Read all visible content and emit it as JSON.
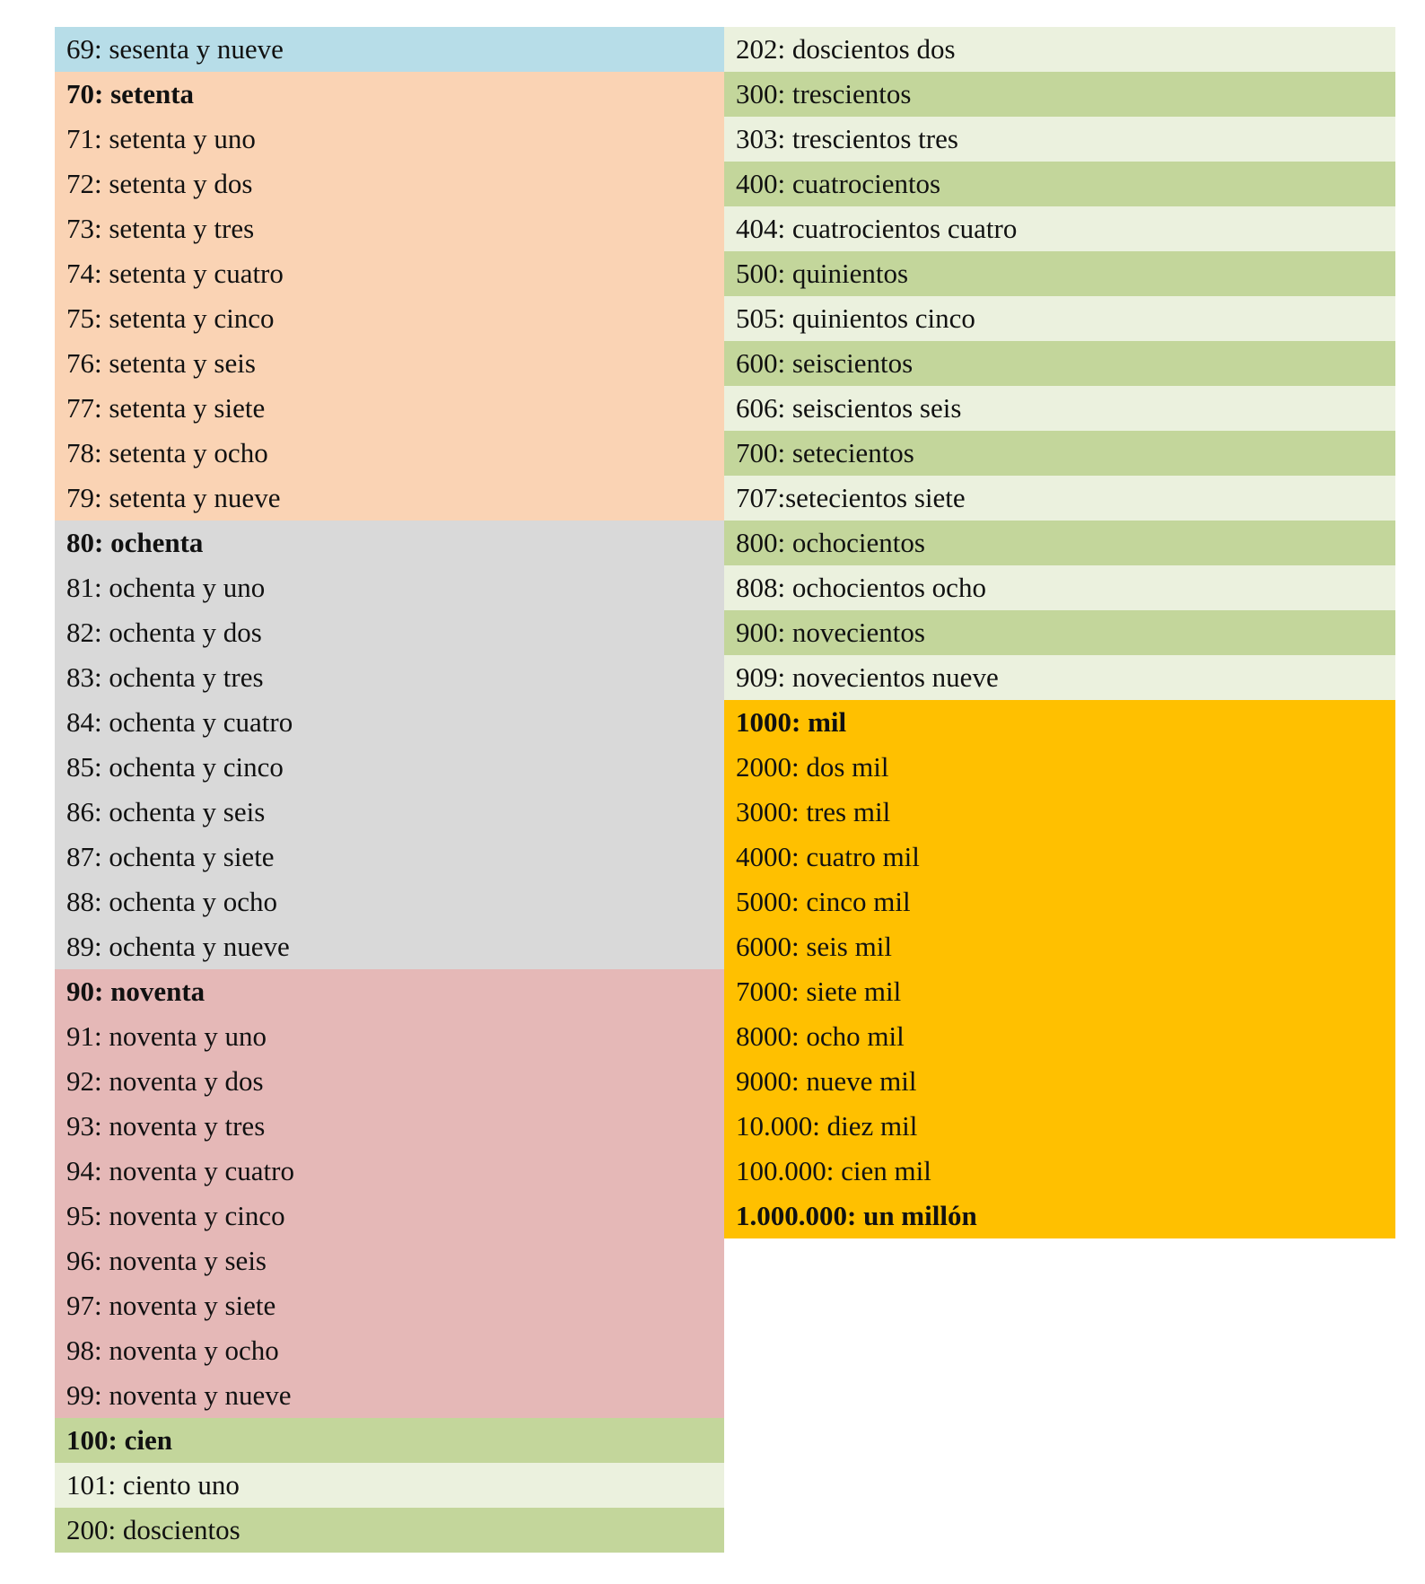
{
  "colors": {
    "blue": "#b7dde8",
    "peach": "#fad3b4",
    "gray": "#d9d9d9",
    "pink": "#e5b8b7",
    "green": "#c3d69b",
    "lightgreen": "#ebf1de",
    "orange": "#ffc000"
  },
  "left_column": [
    {
      "text": "69: sesenta y nueve",
      "bold": false,
      "color": "blue"
    },
    {
      "text": "70: setenta",
      "bold": true,
      "color": "peach"
    },
    {
      "text": "71: setenta y uno",
      "bold": false,
      "color": "peach"
    },
    {
      "text": "72: setenta y dos",
      "bold": false,
      "color": "peach"
    },
    {
      "text": "73: setenta y tres",
      "bold": false,
      "color": "peach"
    },
    {
      "text": "74: setenta y cuatro",
      "bold": false,
      "color": "peach"
    },
    {
      "text": "75: setenta y cinco",
      "bold": false,
      "color": "peach"
    },
    {
      "text": "76: setenta y seis",
      "bold": false,
      "color": "peach"
    },
    {
      "text": "77: setenta y siete",
      "bold": false,
      "color": "peach"
    },
    {
      "text": "78: setenta y ocho",
      "bold": false,
      "color": "peach"
    },
    {
      "text": "79: setenta y nueve",
      "bold": false,
      "color": "peach"
    },
    {
      "text": "80: ochenta",
      "bold": true,
      "color": "gray"
    },
    {
      "text": "81: ochenta y uno",
      "bold": false,
      "color": "gray"
    },
    {
      "text": "82: ochenta y dos",
      "bold": false,
      "color": "gray"
    },
    {
      "text": "83: ochenta y tres",
      "bold": false,
      "color": "gray"
    },
    {
      "text": "84: ochenta y cuatro",
      "bold": false,
      "color": "gray"
    },
    {
      "text": "85: ochenta y cinco",
      "bold": false,
      "color": "gray"
    },
    {
      "text": "86: ochenta y seis",
      "bold": false,
      "color": "gray"
    },
    {
      "text": "87: ochenta y siete",
      "bold": false,
      "color": "gray"
    },
    {
      "text": "88: ochenta y ocho",
      "bold": false,
      "color": "gray"
    },
    {
      "text": "89: ochenta y nueve",
      "bold": false,
      "color": "gray"
    },
    {
      "text": "90: noventa",
      "bold": true,
      "color": "pink"
    },
    {
      "text": "91: noventa y uno",
      "bold": false,
      "color": "pink"
    },
    {
      "text": "92: noventa y dos",
      "bold": false,
      "color": "pink"
    },
    {
      "text": "93: noventa y tres",
      "bold": false,
      "color": "pink"
    },
    {
      "text": "94: noventa y cuatro",
      "bold": false,
      "color": "pink"
    },
    {
      "text": "95: noventa y cinco",
      "bold": false,
      "color": "pink"
    },
    {
      "text": "96: noventa y seis",
      "bold": false,
      "color": "pink"
    },
    {
      "text": "97: noventa y siete",
      "bold": false,
      "color": "pink"
    },
    {
      "text": "98: noventa y ocho",
      "bold": false,
      "color": "pink"
    },
    {
      "text": "99: noventa y nueve",
      "bold": false,
      "color": "pink"
    },
    {
      "text": "100: cien",
      "bold": true,
      "color": "green"
    },
    {
      "text": "101: ciento uno",
      "bold": false,
      "color": "lightgreen"
    },
    {
      "text": "200: doscientos",
      "bold": false,
      "color": "green"
    }
  ],
  "right_column": [
    {
      "text": "202: doscientos dos",
      "bold": false,
      "color": "lightgreen"
    },
    {
      "text": "300: trescientos",
      "bold": false,
      "color": "green"
    },
    {
      "text": "303: trescientos tres",
      "bold": false,
      "color": "lightgreen"
    },
    {
      "text": "400: cuatrocientos",
      "bold": false,
      "color": "green"
    },
    {
      "text": "404: cuatrocientos cuatro",
      "bold": false,
      "color": "lightgreen"
    },
    {
      "text": "500: quinientos",
      "bold": false,
      "color": "green"
    },
    {
      "text": "505: quinientos cinco",
      "bold": false,
      "color": "lightgreen"
    },
    {
      "text": "600: seiscientos",
      "bold": false,
      "color": "green"
    },
    {
      "text": "606: seiscientos seis",
      "bold": false,
      "color": "lightgreen"
    },
    {
      "text": "700: setecientos",
      "bold": false,
      "color": "green"
    },
    {
      "text": "707:setecientos siete",
      "bold": false,
      "color": "lightgreen"
    },
    {
      "text": "800: ochocientos",
      "bold": false,
      "color": "green"
    },
    {
      "text": "808: ochocientos ocho",
      "bold": false,
      "color": "lightgreen"
    },
    {
      "text": "900: novecientos",
      "bold": false,
      "color": "green"
    },
    {
      "text": "909: novecientos nueve",
      "bold": false,
      "color": "lightgreen"
    },
    {
      "text": "1000: mil",
      "bold": true,
      "color": "orange"
    },
    {
      "text": "2000: dos mil",
      "bold": false,
      "color": "orange"
    },
    {
      "text": "3000: tres mil",
      "bold": false,
      "color": "orange"
    },
    {
      "text": "4000: cuatro mil",
      "bold": false,
      "color": "orange"
    },
    {
      "text": "5000: cinco mil",
      "bold": false,
      "color": "orange"
    },
    {
      "text": "6000: seis mil",
      "bold": false,
      "color": "orange"
    },
    {
      "text": "7000: siete mil",
      "bold": false,
      "color": "orange"
    },
    {
      "text": "8000: ocho mil",
      "bold": false,
      "color": "orange"
    },
    {
      "text": "9000: nueve mil",
      "bold": false,
      "color": "orange"
    },
    {
      "text": "10.000: diez mil",
      "bold": false,
      "color": "orange"
    },
    {
      "text": "100.000: cien mil",
      "bold": false,
      "color": "orange"
    },
    {
      "text": "1.000.000: un millón",
      "bold": true,
      "color": "orange"
    }
  ]
}
